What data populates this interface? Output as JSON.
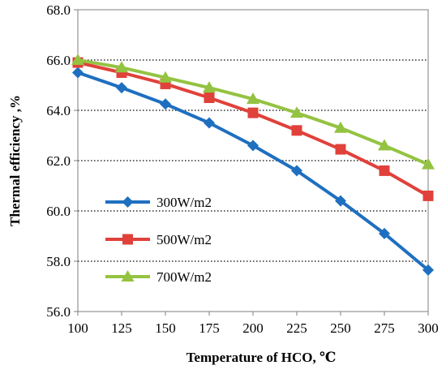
{
  "chart_data": {
    "type": "line",
    "title": "",
    "xlabel": "Temperature of HCO, ℃",
    "ylabel": "Thermal efficiency ,%",
    "x": [
      100,
      125,
      150,
      175,
      200,
      225,
      250,
      275,
      300
    ],
    "x_ticks": [
      "100",
      "125",
      "150",
      "175",
      "200",
      "225",
      "250",
      "275",
      "300"
    ],
    "xlim": [
      100,
      300
    ],
    "y_ticks": [
      "56.0",
      "58.0",
      "60.0",
      "62.0",
      "64.0",
      "66.0",
      "68.0"
    ],
    "ylim": [
      56,
      68
    ],
    "grid": "horizontal dotted",
    "legend_position": "center-left",
    "series": [
      {
        "name": "300W/m2",
        "color": "#1F6FC0",
        "marker": "diamond",
        "values": [
          65.5,
          64.9,
          64.25,
          63.5,
          62.6,
          61.6,
          60.4,
          59.1,
          57.65
        ]
      },
      {
        "name": "500W/m2",
        "color": "#E0413A",
        "marker": "square",
        "values": [
          65.9,
          65.5,
          65.05,
          64.5,
          63.9,
          63.2,
          62.45,
          61.6,
          60.6
        ]
      },
      {
        "name": "700W/m2",
        "color": "#94C341",
        "marker": "triangle",
        "values": [
          66.0,
          65.7,
          65.3,
          64.9,
          64.45,
          63.9,
          63.3,
          62.6,
          61.85
        ]
      }
    ]
  }
}
